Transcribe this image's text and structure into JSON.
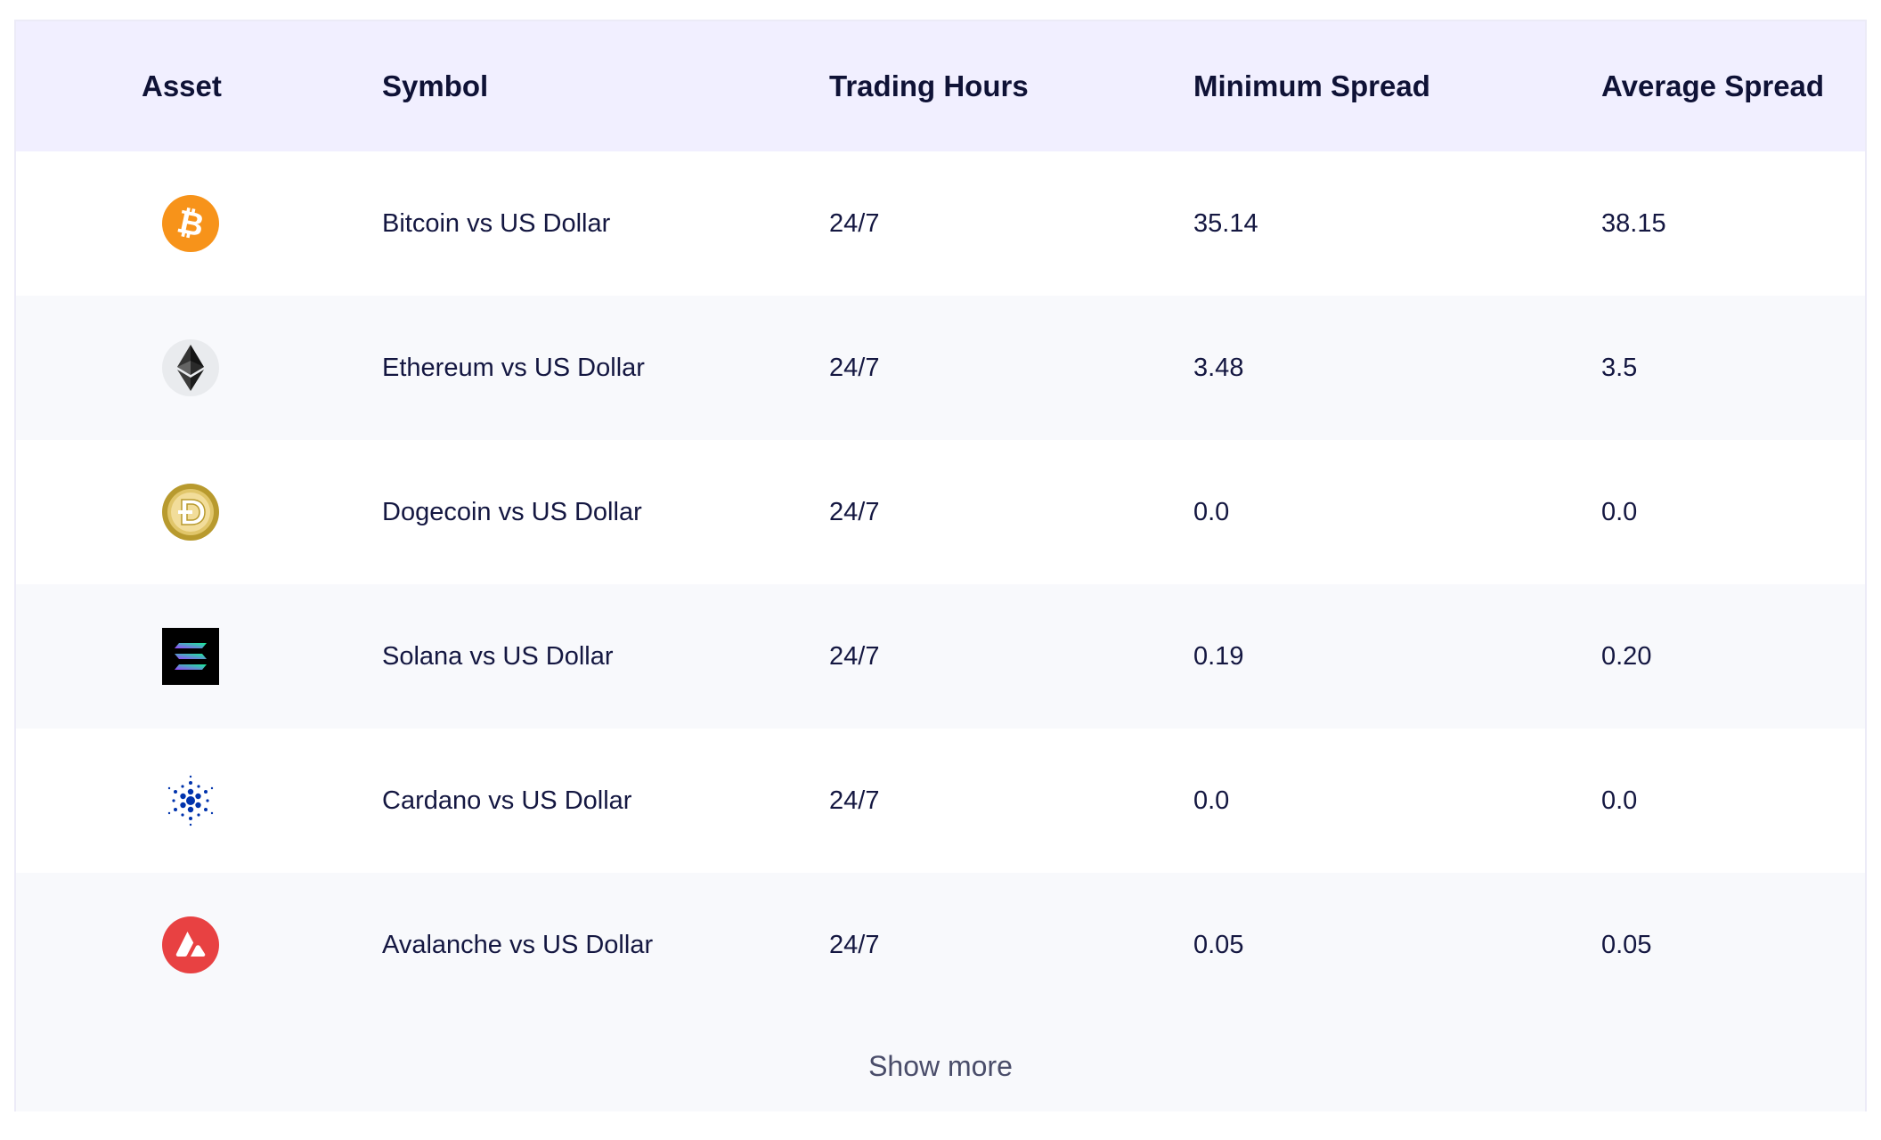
{
  "table": {
    "headers": {
      "asset": "Asset",
      "symbol": "Symbol",
      "trading_hours": "Trading Hours",
      "minimum_spread": "Minimum Spread",
      "average_spread": "Average Spread"
    },
    "rows": [
      {
        "icon": "bitcoin-icon",
        "symbol": "Bitcoin vs US Dollar",
        "trading_hours": "24/7",
        "minimum_spread": "35.14",
        "average_spread": "38.15"
      },
      {
        "icon": "ethereum-icon",
        "symbol": "Ethereum vs US Dollar",
        "trading_hours": "24/7",
        "minimum_spread": "3.48",
        "average_spread": "3.5"
      },
      {
        "icon": "dogecoin-icon",
        "symbol": "Dogecoin vs US Dollar",
        "trading_hours": "24/7",
        "minimum_spread": "0.0",
        "average_spread": "0.0"
      },
      {
        "icon": "solana-icon",
        "symbol": "Solana vs US Dollar",
        "trading_hours": "24/7",
        "minimum_spread": "0.19",
        "average_spread": "0.20"
      },
      {
        "icon": "cardano-icon",
        "symbol": "Cardano vs US Dollar",
        "trading_hours": "24/7",
        "minimum_spread": "0.0",
        "average_spread": "0.0"
      },
      {
        "icon": "avalanche-icon",
        "symbol": "Avalanche vs US Dollar",
        "trading_hours": "24/7",
        "minimum_spread": "0.05",
        "average_spread": "0.05"
      }
    ],
    "show_more_label": "Show more"
  },
  "colors": {
    "header_bg": "#f1efff",
    "alt_row_bg": "#f8f9fc",
    "text": "#141741",
    "bitcoin": "#f7931a",
    "avalanche": "#e84142",
    "cardano": "#0033ad",
    "dogecoin": "#c2a633"
  }
}
